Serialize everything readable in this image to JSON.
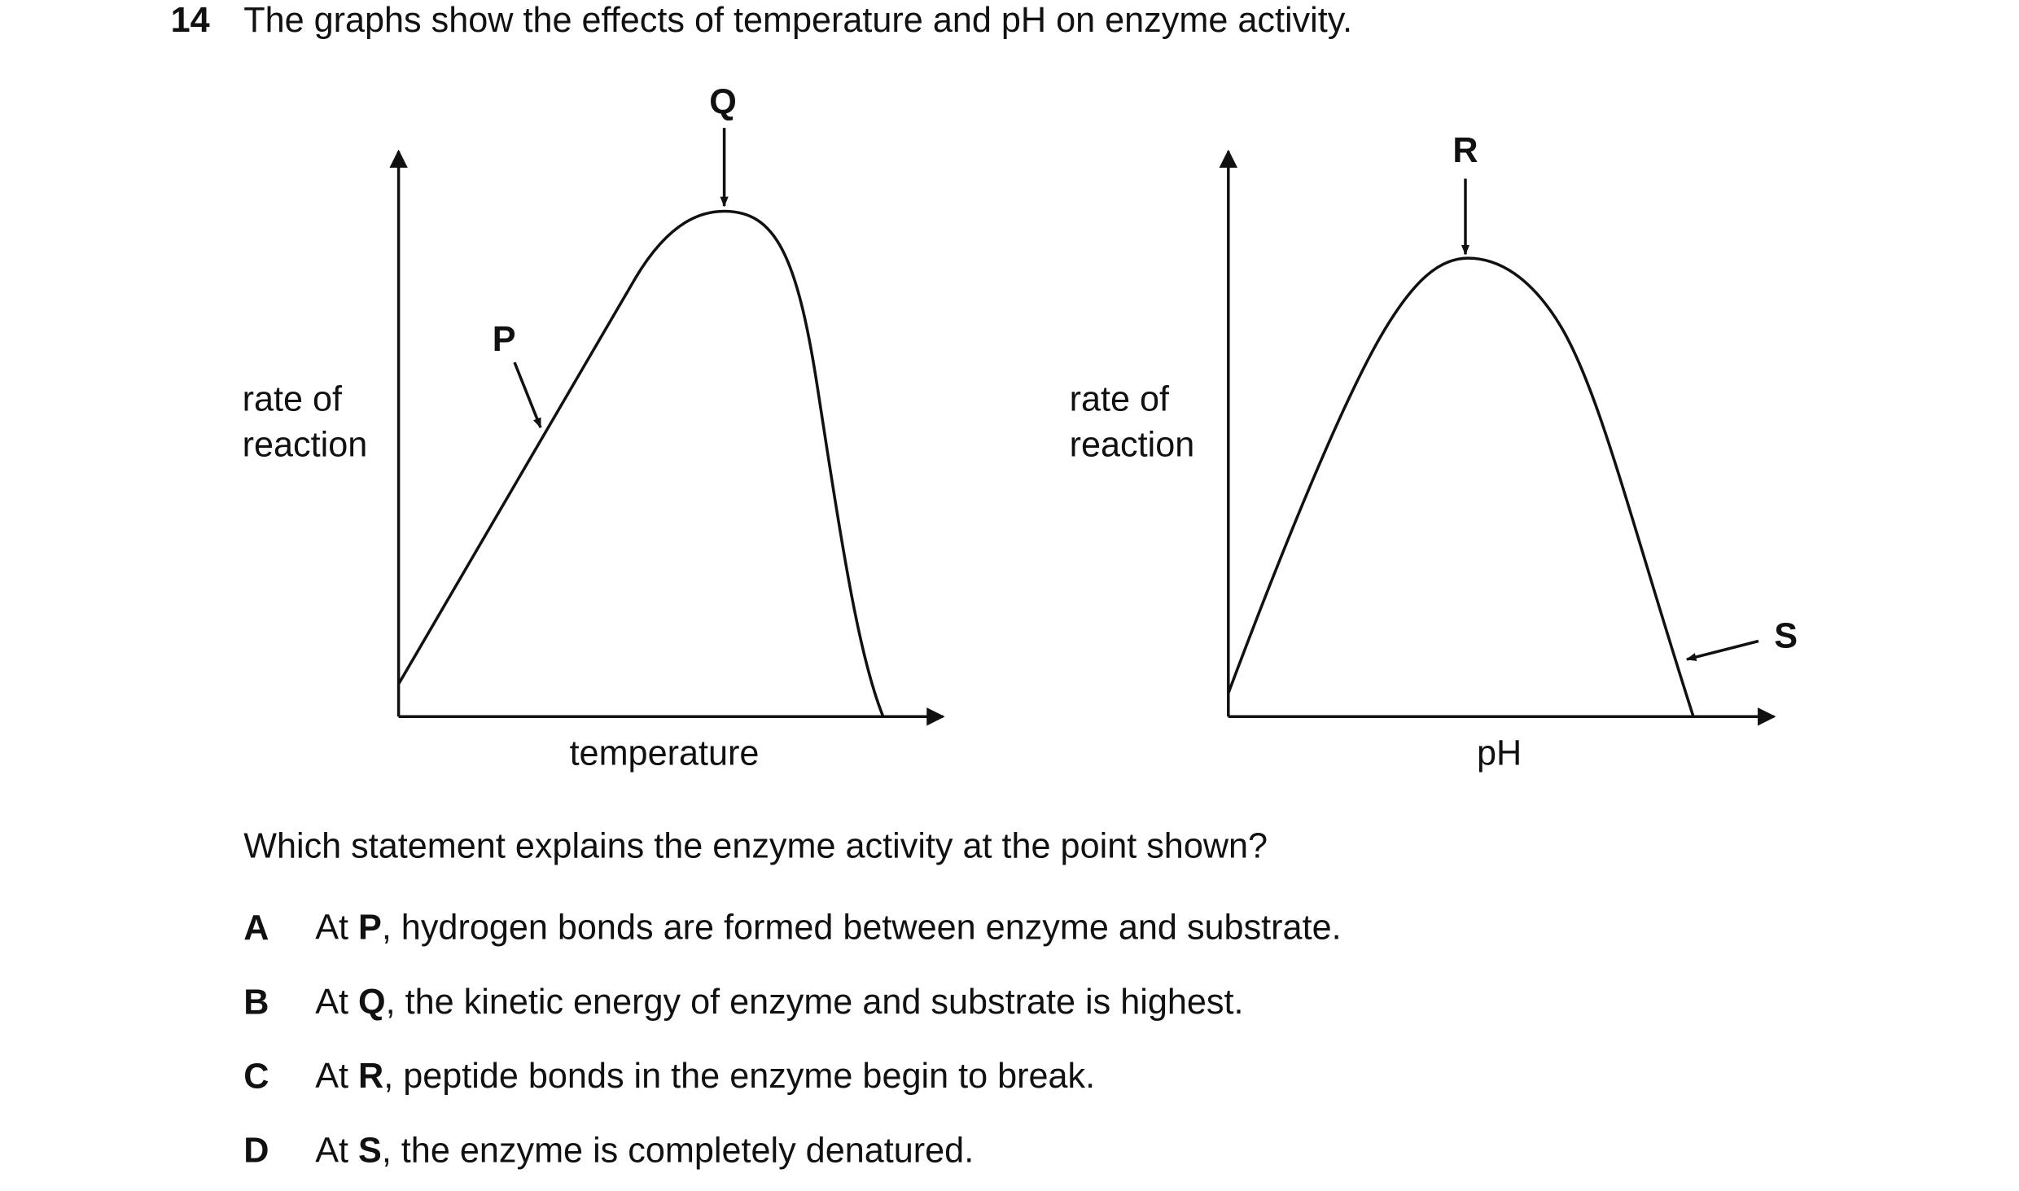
{
  "question": {
    "number": "14",
    "text": "The graphs show the effects of temperature and pH on enzyme activity."
  },
  "graphs": [
    {
      "y_label": [
        "rate of",
        "reaction"
      ],
      "x_label": "temperature",
      "markers": [
        "P",
        "Q"
      ]
    },
    {
      "y_label": [
        "rate of",
        "reaction"
      ],
      "x_label": "pH",
      "markers": [
        "R",
        "S"
      ]
    }
  ],
  "prompt": "Which statement explains the enzyme activity at the point shown?",
  "options": [
    {
      "letter": "A",
      "before": "At ",
      "point": "P",
      "after": ", hydrogen bonds are formed between enzyme and substrate."
    },
    {
      "letter": "B",
      "before": "At ",
      "point": "Q",
      "after": ", the kinetic energy of enzyme and substrate is highest."
    },
    {
      "letter": "C",
      "before": "At ",
      "point": "R",
      "after": ", peptide bonds in the enzyme begin to break."
    },
    {
      "letter": "D",
      "before": "At ",
      "point": "S",
      "after": ", the enzyme is completely denatured."
    }
  ]
}
